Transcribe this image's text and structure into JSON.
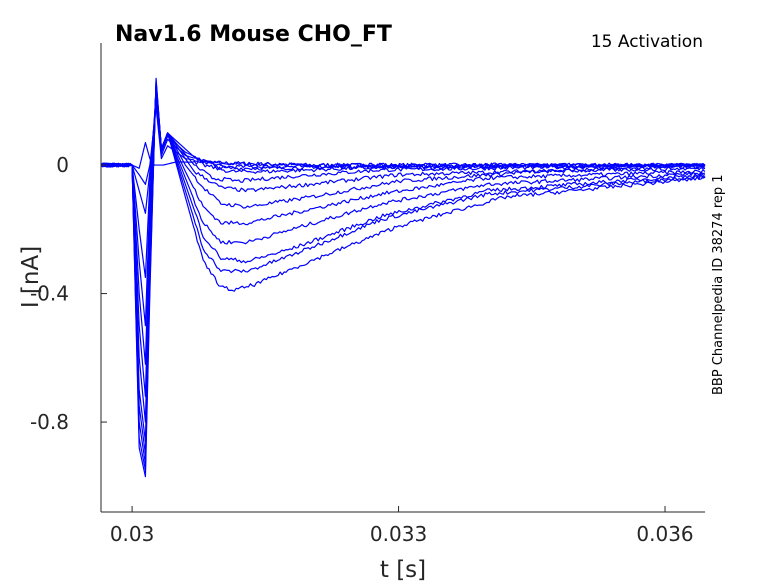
{
  "chart_data": {
    "type": "line",
    "title": "Nav1.6  Mouse  CHO_FT",
    "annotation": "15  Activation",
    "side_note": "BBP Channelpedia ID 38274 rep 1",
    "xlabel": "t [s]",
    "ylabel": "I [nA]",
    "xlim": [
      0.02965,
      0.03645
    ],
    "ylim": [
      -1.08,
      0.38
    ],
    "xticks": [
      0.03,
      0.033,
      0.036
    ],
    "xtick_labels": [
      "0.03",
      "0.033",
      "0.036"
    ],
    "yticks": [
      0,
      -0.4,
      -0.8
    ],
    "ytick_labels": [
      "0",
      "-0.4",
      "-0.8"
    ],
    "grid": false,
    "line_color": "#0000ff",
    "series": [
      {
        "values": [
          [
            0.02965,
            0.0
          ],
          [
            0.03,
            0.0
          ],
          [
            0.03008,
            -0.01
          ],
          [
            0.03015,
            0.07
          ],
          [
            0.0302,
            0.02
          ],
          [
            0.03025,
            0.0
          ],
          [
            0.03035,
            0.0
          ],
          [
            0.0305,
            0.01
          ],
          [
            0.032,
            0.0
          ],
          [
            0.034,
            0.0
          ],
          [
            0.03645,
            0.0
          ]
        ]
      },
      {
        "values": [
          [
            0.02965,
            0.0
          ],
          [
            0.03,
            0.0
          ],
          [
            0.03008,
            -0.03
          ],
          [
            0.03015,
            -0.06
          ],
          [
            0.0302,
            0.0
          ],
          [
            0.03027,
            0.18
          ],
          [
            0.03033,
            0.02
          ],
          [
            0.0304,
            0.06
          ],
          [
            0.0306,
            0.02
          ],
          [
            0.031,
            0.005
          ],
          [
            0.032,
            0.0
          ],
          [
            0.03645,
            0.0
          ]
        ]
      },
      {
        "values": [
          [
            0.02965,
            0.0
          ],
          [
            0.03,
            0.0
          ],
          [
            0.03008,
            -0.08
          ],
          [
            0.03015,
            -0.15
          ],
          [
            0.0302,
            -0.02
          ],
          [
            0.03027,
            0.2
          ],
          [
            0.03033,
            0.03
          ],
          [
            0.0304,
            0.08
          ],
          [
            0.0306,
            0.03
          ],
          [
            0.031,
            -0.005
          ],
          [
            0.032,
            -0.005
          ],
          [
            0.03645,
            0.0
          ]
        ]
      },
      {
        "values": [
          [
            0.02965,
            0.0
          ],
          [
            0.03,
            0.0
          ],
          [
            0.03008,
            -0.2
          ],
          [
            0.03015,
            -0.35
          ],
          [
            0.0302,
            -0.05
          ],
          [
            0.03027,
            0.22
          ],
          [
            0.03033,
            0.04
          ],
          [
            0.0304,
            0.09
          ],
          [
            0.0306,
            0.04
          ],
          [
            0.031,
            -0.01
          ],
          [
            0.0315,
            -0.01
          ],
          [
            0.0325,
            -0.005
          ],
          [
            0.03645,
            0.0
          ]
        ]
      },
      {
        "values": [
          [
            0.02965,
            0.0
          ],
          [
            0.03,
            0.0
          ],
          [
            0.03008,
            -0.3
          ],
          [
            0.03015,
            -0.5
          ],
          [
            0.0302,
            -0.1
          ],
          [
            0.03027,
            0.23
          ],
          [
            0.03033,
            0.05
          ],
          [
            0.0304,
            0.1
          ],
          [
            0.0306,
            0.05
          ],
          [
            0.0308,
            0.0
          ],
          [
            0.0311,
            -0.02
          ],
          [
            0.0315,
            -0.02
          ],
          [
            0.0325,
            -0.01
          ],
          [
            0.03645,
            0.0
          ]
        ]
      },
      {
        "values": [
          [
            0.02965,
            0.0
          ],
          [
            0.03,
            0.0
          ],
          [
            0.03008,
            -0.4
          ],
          [
            0.03015,
            -0.62
          ],
          [
            0.0302,
            -0.15
          ],
          [
            0.03027,
            0.24
          ],
          [
            0.03033,
            0.05
          ],
          [
            0.0304,
            0.1
          ],
          [
            0.0307,
            0.0
          ],
          [
            0.0309,
            -0.04
          ],
          [
            0.0312,
            -0.05
          ],
          [
            0.0318,
            -0.035
          ],
          [
            0.0328,
            -0.015
          ],
          [
            0.03645,
            0.0
          ]
        ]
      },
      {
        "values": [
          [
            0.02965,
            0.0
          ],
          [
            0.03,
            0.0
          ],
          [
            0.03008,
            -0.5
          ],
          [
            0.03015,
            -0.72
          ],
          [
            0.0302,
            -0.2
          ],
          [
            0.03027,
            0.24
          ],
          [
            0.03033,
            0.05
          ],
          [
            0.0304,
            0.1
          ],
          [
            0.0307,
            -0.02
          ],
          [
            0.031,
            -0.07
          ],
          [
            0.0313,
            -0.08
          ],
          [
            0.032,
            -0.06
          ],
          [
            0.033,
            -0.03
          ],
          [
            0.03645,
            -0.005
          ]
        ]
      },
      {
        "values": [
          [
            0.02965,
            0.0
          ],
          [
            0.03,
            0.0
          ],
          [
            0.03008,
            -0.6
          ],
          [
            0.03015,
            -0.8
          ],
          [
            0.0302,
            -0.25
          ],
          [
            0.03027,
            0.25
          ],
          [
            0.03033,
            0.05
          ],
          [
            0.0304,
            0.1
          ],
          [
            0.0306,
            0.0
          ],
          [
            0.0308,
            -0.07
          ],
          [
            0.031,
            -0.12
          ],
          [
            0.0313,
            -0.13
          ],
          [
            0.032,
            -0.1
          ],
          [
            0.033,
            -0.05
          ],
          [
            0.0345,
            -0.02
          ],
          [
            0.03645,
            -0.01
          ]
        ]
      },
      {
        "values": [
          [
            0.02965,
            0.0
          ],
          [
            0.03,
            0.0
          ],
          [
            0.03008,
            -0.7
          ],
          [
            0.03015,
            -0.86
          ],
          [
            0.0302,
            -0.3
          ],
          [
            0.03027,
            0.25
          ],
          [
            0.03033,
            0.05
          ],
          [
            0.0304,
            0.1
          ],
          [
            0.0306,
            -0.02
          ],
          [
            0.0308,
            -0.13
          ],
          [
            0.031,
            -0.18
          ],
          [
            0.0313,
            -0.18
          ],
          [
            0.0318,
            -0.15
          ],
          [
            0.0328,
            -0.09
          ],
          [
            0.034,
            -0.04
          ],
          [
            0.03645,
            -0.02
          ]
        ]
      },
      {
        "values": [
          [
            0.02965,
            0.0
          ],
          [
            0.03,
            0.0
          ],
          [
            0.03008,
            -0.75
          ],
          [
            0.03015,
            -0.9
          ],
          [
            0.0302,
            -0.33
          ],
          [
            0.03027,
            0.25
          ],
          [
            0.03033,
            0.05
          ],
          [
            0.0304,
            0.1
          ],
          [
            0.0306,
            -0.04
          ],
          [
            0.0308,
            -0.18
          ],
          [
            0.031,
            -0.24
          ],
          [
            0.0313,
            -0.24
          ],
          [
            0.0318,
            -0.2
          ],
          [
            0.0328,
            -0.12
          ],
          [
            0.034,
            -0.06
          ],
          [
            0.03645,
            -0.025
          ]
        ]
      },
      {
        "values": [
          [
            0.02965,
            0.0
          ],
          [
            0.03,
            0.0
          ],
          [
            0.03008,
            -0.8
          ],
          [
            0.03015,
            -0.93
          ],
          [
            0.0302,
            -0.35
          ],
          [
            0.03027,
            0.26
          ],
          [
            0.03033,
            0.05
          ],
          [
            0.0304,
            0.1
          ],
          [
            0.0306,
            -0.06
          ],
          [
            0.0308,
            -0.22
          ],
          [
            0.031,
            -0.29
          ],
          [
            0.0313,
            -0.3
          ],
          [
            0.0318,
            -0.26
          ],
          [
            0.0328,
            -0.16
          ],
          [
            0.034,
            -0.08
          ],
          [
            0.03645,
            -0.03
          ]
        ]
      },
      {
        "values": [
          [
            0.02965,
            0.0
          ],
          [
            0.03,
            0.0
          ],
          [
            0.03008,
            -0.85
          ],
          [
            0.03015,
            -0.95
          ],
          [
            0.0302,
            -0.37
          ],
          [
            0.03027,
            0.26
          ],
          [
            0.03033,
            0.05
          ],
          [
            0.0304,
            0.1
          ],
          [
            0.0306,
            -0.08
          ],
          [
            0.0308,
            -0.26
          ],
          [
            0.031,
            -0.33
          ],
          [
            0.0313,
            -0.33
          ],
          [
            0.0318,
            -0.28
          ],
          [
            0.0328,
            -0.17
          ],
          [
            0.034,
            -0.09
          ],
          [
            0.03645,
            -0.035
          ]
        ]
      },
      {
        "values": [
          [
            0.02965,
            0.0
          ],
          [
            0.03,
            0.0
          ],
          [
            0.03008,
            -0.88
          ],
          [
            0.03015,
            -0.97
          ],
          [
            0.0302,
            -0.4
          ],
          [
            0.03027,
            0.27
          ],
          [
            0.03033,
            0.05
          ],
          [
            0.0304,
            0.1
          ],
          [
            0.0306,
            -0.1
          ],
          [
            0.0308,
            -0.3
          ],
          [
            0.031,
            -0.38
          ],
          [
            0.03115,
            -0.39
          ],
          [
            0.0314,
            -0.37
          ],
          [
            0.032,
            -0.3
          ],
          [
            0.033,
            -0.19
          ],
          [
            0.0342,
            -0.1
          ],
          [
            0.03645,
            -0.04
          ]
        ]
      }
    ]
  }
}
